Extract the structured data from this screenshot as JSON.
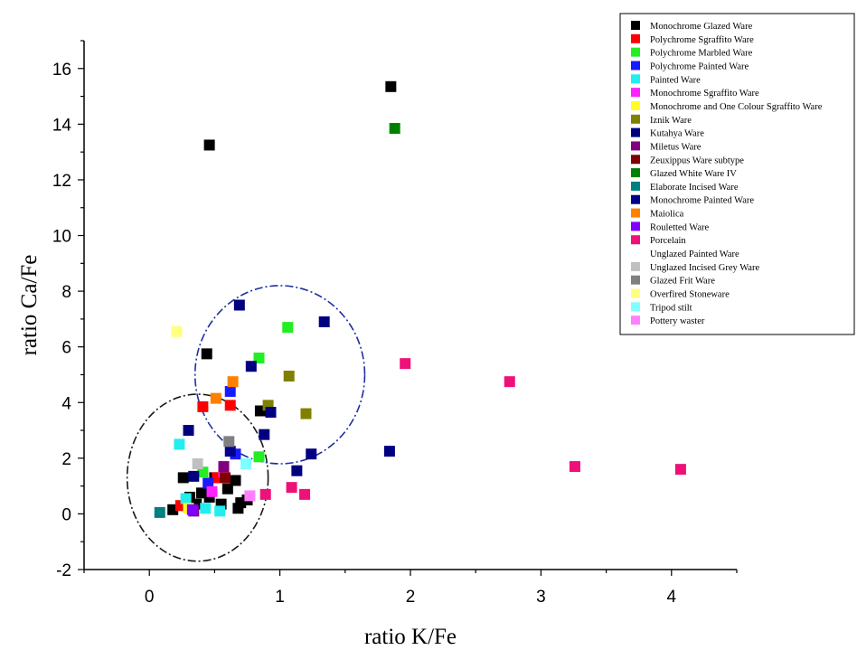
{
  "chart_data": {
    "type": "scatter",
    "xlabel": "ratio K/Fe",
    "ylabel": "ratio Ca/Fe",
    "xlim": [
      -0.5,
      4.5
    ],
    "ylim": [
      -2,
      17
    ],
    "x_ticks": [
      "0",
      "1",
      "2",
      "3",
      "4"
    ],
    "y_ticks": [
      "-2",
      "0",
      "2",
      "4",
      "6",
      "8",
      "10",
      "12",
      "14",
      "16"
    ],
    "legend_position": "top-right",
    "circles": [
      {
        "line_style": "dash-dot",
        "color": "#1a1a1a",
        "cx": 0.37,
        "cy": 1.3,
        "rx": 0.54,
        "ry": 3.0
      },
      {
        "line_style": "dash-dot",
        "color": "#1f2fa0",
        "cx": 1.0,
        "cy": 5.0,
        "rx": 0.65,
        "ry": 3.2
      }
    ],
    "series": [
      {
        "name": "Monochrome Glazed Ware",
        "color": "#000000",
        "points": [
          [
            0.46,
            13.25
          ],
          [
            1.85,
            15.35
          ],
          [
            0.44,
            5.75
          ],
          [
            0.18,
            0.15
          ],
          [
            0.26,
            1.3
          ],
          [
            0.31,
            0.6
          ],
          [
            0.36,
            0.35
          ],
          [
            0.4,
            0.75
          ],
          [
            0.46,
            0.6
          ],
          [
            0.55,
            0.35
          ],
          [
            0.66,
            1.2
          ],
          [
            0.7,
            0.4
          ],
          [
            0.68,
            0.2
          ],
          [
            0.75,
            0.5
          ],
          [
            0.85,
            3.7
          ],
          [
            0.6,
            0.9
          ],
          [
            0.28,
            0.3
          ],
          [
            0.5,
            1.3
          ]
        ]
      },
      {
        "name": "Polychrome Sgraffito Ware",
        "color": "#ff0000",
        "points": [
          [
            0.41,
            3.85
          ],
          [
            0.62,
            3.9
          ],
          [
            0.52,
            1.3
          ],
          [
            0.24,
            0.3
          ]
        ]
      },
      {
        "name": "Polychrome Marbled Ware",
        "color": "#22ee22",
        "points": [
          [
            0.84,
            5.6
          ],
          [
            1.06,
            6.7
          ],
          [
            0.84,
            2.05
          ],
          [
            0.41,
            1.5
          ]
        ]
      },
      {
        "name": "Polychrome Painted Ware",
        "color": "#1a1aff",
        "points": [
          [
            0.62,
            4.4
          ],
          [
            0.45,
            1.1
          ],
          [
            0.66,
            2.15
          ]
        ]
      },
      {
        "name": "Painted Ware",
        "color": "#22eeee",
        "points": [
          [
            0.23,
            2.5
          ],
          [
            0.28,
            0.55
          ],
          [
            0.43,
            0.2
          ],
          [
            0.54,
            0.1
          ]
        ]
      },
      {
        "name": "Monochrome Sgraffito Ware",
        "color": "#ff22ff",
        "points": [
          [
            0.48,
            0.8
          ],
          [
            0.57,
            1.5
          ]
        ]
      },
      {
        "name": "Monochrome and One Colour Sgraffito Ware",
        "color": "#ffff22",
        "points": [
          [
            0.3,
            0.2
          ]
        ]
      },
      {
        "name": "Iznik Ware",
        "color": "#808000",
        "points": [
          [
            0.91,
            3.9
          ],
          [
            1.07,
            4.95
          ],
          [
            1.2,
            3.6
          ]
        ]
      },
      {
        "name": "Kutahya Ware",
        "color": "#000080",
        "points": [
          [
            0.69,
            7.5
          ],
          [
            1.34,
            6.9
          ],
          [
            0.78,
            5.3
          ],
          [
            0.93,
            3.65
          ],
          [
            0.88,
            2.85
          ],
          [
            1.24,
            2.15
          ],
          [
            1.13,
            1.55
          ],
          [
            1.84,
            2.25
          ],
          [
            0.3,
            3.0
          ],
          [
            0.34,
            1.35
          ]
        ]
      },
      {
        "name": "Miletus Ware",
        "color": "#800080",
        "points": [
          [
            0.57,
            1.7
          ],
          [
            0.34,
            0.1
          ]
        ]
      },
      {
        "name": "Zeuxippus Ware subtype",
        "color": "#800000",
        "points": [
          [
            0.58,
            1.3
          ]
        ]
      },
      {
        "name": "Glazed White Ware IV",
        "color": "#008000",
        "points": [
          [
            1.88,
            13.85
          ]
        ]
      },
      {
        "name": "Elaborate Incised Ware",
        "color": "#008080",
        "points": [
          [
            0.08,
            0.05
          ]
        ]
      },
      {
        "name": "Monochrome Painted Ware",
        "color": "#00008b",
        "points": [
          [
            0.62,
            2.25
          ]
        ]
      },
      {
        "name": "Maiolica",
        "color": "#ff8000",
        "points": [
          [
            0.64,
            4.75
          ],
          [
            0.51,
            4.15
          ]
        ]
      },
      {
        "name": "Rouletted Ware",
        "color": "#8000ff",
        "points": [
          [
            0.33,
            0.15
          ]
        ]
      },
      {
        "name": "Porcelain",
        "color": "#ee1177",
        "points": [
          [
            1.96,
            5.4
          ],
          [
            2.76,
            4.75
          ],
          [
            3.26,
            1.7
          ],
          [
            4.07,
            1.6
          ],
          [
            1.19,
            0.7
          ],
          [
            1.09,
            0.95
          ],
          [
            0.89,
            0.7
          ]
        ]
      },
      {
        "name": "Unglazed Painted Ware",
        "color": "#ffffff",
        "points": []
      },
      {
        "name": "Unglazed Incised Grey Ware",
        "color": "#c0c0c0",
        "points": [
          [
            0.37,
            1.8
          ]
        ]
      },
      {
        "name": "Glazed Frit Ware",
        "color": "#808080",
        "points": [
          [
            0.61,
            2.6
          ]
        ]
      },
      {
        "name": "Overfired Stoneware",
        "color": "#ffff80",
        "points": [
          [
            0.21,
            6.55
          ]
        ]
      },
      {
        "name": "Tripod stilt",
        "color": "#80ffff",
        "points": [
          [
            0.74,
            1.8
          ]
        ]
      },
      {
        "name": "Pottery waster",
        "color": "#ff80ff",
        "points": [
          [
            0.77,
            0.65
          ]
        ]
      }
    ]
  }
}
